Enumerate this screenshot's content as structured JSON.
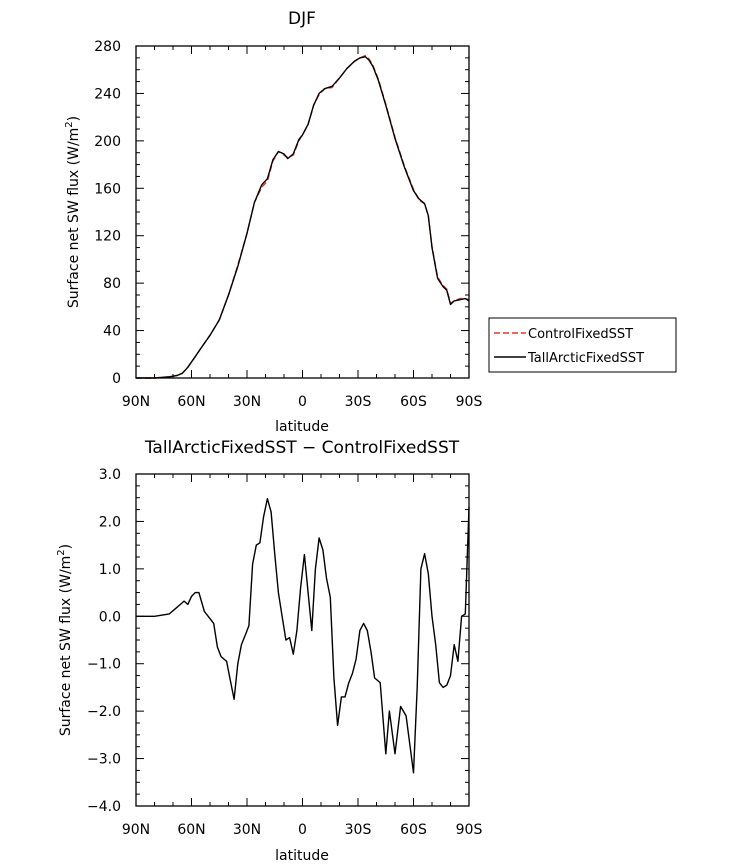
{
  "chart_data": [
    {
      "type": "line",
      "title": "DJF",
      "xlabel": "latitude",
      "ylabel": "Surface net SW flux (W/m",
      "ylabel_sup": "2",
      "ylabel_close": ")",
      "xlim": [
        90,
        -90
      ],
      "ylim": [
        0,
        280
      ],
      "xticks": [
        90,
        60,
        30,
        0,
        -30,
        -60,
        -90
      ],
      "xtick_labels": [
        "90N",
        "60N",
        "30N",
        "0",
        "30S",
        "60S",
        "90S"
      ],
      "yticks": [
        0,
        40,
        80,
        120,
        160,
        200,
        240,
        280
      ],
      "ytick_labels": [
        "0",
        "40",
        "80",
        "120",
        "160",
        "200",
        "240",
        "280"
      ],
      "legend_position": "right",
      "series": [
        {
          "name": "ControlFixedSST",
          "color": "#e8332a",
          "dash": "dashed",
          "x": [
            90,
            80,
            72,
            68,
            65,
            62,
            58,
            55,
            50,
            45,
            40,
            35,
            30,
            26,
            22,
            19,
            16,
            13,
            10,
            8,
            5,
            2,
            0,
            -3,
            -6,
            -9,
            -12,
            -16,
            -20,
            -24,
            -28,
            -31,
            -34,
            -36,
            -38,
            -41,
            -45,
            -50,
            -55,
            -60,
            -63,
            -66,
            -68,
            -70,
            -73,
            -76,
            -78,
            -80,
            -82,
            -85,
            -88,
            -90
          ],
          "y": [
            0,
            0,
            1,
            2,
            4,
            9,
            18,
            25,
            36,
            49,
            70,
            95,
            122,
            148,
            161,
            166,
            183,
            191,
            188,
            186,
            188,
            200,
            205,
            214,
            230,
            239,
            244,
            245,
            253,
            261,
            267,
            270,
            272,
            269,
            264,
            252,
            231,
            203,
            179,
            159,
            150,
            147,
            137,
            111,
            85,
            78,
            75,
            63,
            65,
            67,
            67,
            66
          ]
        },
        {
          "name": "TallArcticFixedSST",
          "color": "#000000",
          "dash": "solid",
          "x": [
            90,
            80,
            72,
            68,
            65,
            62,
            58,
            55,
            50,
            45,
            40,
            35,
            30,
            26,
            22,
            19,
            16,
            13,
            10,
            8,
            5,
            2,
            0,
            -3,
            -6,
            -9,
            -12,
            -16,
            -20,
            -24,
            -28,
            -31,
            -34,
            -36,
            -38,
            -41,
            -45,
            -50,
            -55,
            -60,
            -63,
            -66,
            -68,
            -70,
            -73,
            -76,
            -78,
            -80,
            -82,
            -85,
            -88,
            -90
          ],
          "y": [
            0,
            0,
            1,
            2,
            4,
            9,
            18,
            25,
            36,
            49,
            70,
            94,
            122,
            148,
            163,
            168,
            184,
            191,
            189,
            185,
            189,
            201,
            205,
            214,
            230,
            240,
            244,
            246,
            253,
            261,
            267,
            270,
            271,
            268,
            263,
            251,
            230,
            202,
            178,
            158,
            151,
            147,
            137,
            110,
            84,
            77,
            74,
            62,
            65,
            66,
            67,
            65
          ]
        }
      ]
    },
    {
      "type": "line",
      "title": "TallArcticFixedSST − ControlFixedSST",
      "xlabel": "latitude",
      "ylabel": "Surface net SW flux (W/m",
      "ylabel_sup": "2",
      "ylabel_close": ")",
      "xlim": [
        90,
        -90
      ],
      "ylim": [
        -4,
        3
      ],
      "xticks": [
        90,
        60,
        30,
        0,
        -30,
        -60,
        -90
      ],
      "xtick_labels": [
        "90N",
        "60N",
        "30N",
        "0",
        "30S",
        "60S",
        "90S"
      ],
      "yticks": [
        -4,
        -3,
        -2,
        -1,
        0,
        1,
        2,
        3
      ],
      "ytick_labels": [
        "−4.0",
        "−3.0",
        "−2.0",
        "−1.0",
        "0.0",
        "1.0",
        "2.0",
        "3.0"
      ],
      "series": [
        {
          "color": "#000000",
          "x": [
            90,
            80,
            72,
            69,
            66,
            64,
            62,
            60,
            58,
            56,
            53,
            51,
            48,
            46,
            44,
            41,
            39,
            37,
            35,
            33,
            31,
            29,
            27,
            25,
            23,
            21,
            19,
            17,
            15,
            13,
            11,
            9,
            7,
            5,
            3,
            1,
            -1,
            -3,
            -5,
            -7,
            -9,
            -11,
            -13,
            -15,
            -17,
            -19,
            -21,
            -23,
            -25,
            -27,
            -29,
            -31,
            -33,
            -35,
            -37,
            -39,
            -42,
            -45,
            -47,
            -50,
            -53,
            -56,
            -58,
            -60,
            -62,
            -64,
            -66,
            -68,
            -70,
            -72,
            -74,
            -76,
            -78,
            -80,
            -82,
            -84,
            -86,
            -88,
            -90
          ],
          "y": [
            0,
            0,
            0.05,
            0.15,
            0.25,
            0.32,
            0.25,
            0.42,
            0.5,
            0.5,
            0.1,
            0,
            -0.15,
            -0.65,
            -0.85,
            -0.95,
            -1.35,
            -1.75,
            -1.0,
            -0.6,
            -0.4,
            -0.2,
            1.1,
            1.5,
            1.55,
            2.1,
            2.48,
            2.2,
            1.3,
            0.5,
            0,
            -0.5,
            -0.45,
            -0.8,
            -0.3,
            0.6,
            1.3,
            0.5,
            -0.3,
            1.0,
            1.65,
            1.4,
            0.8,
            0.4,
            -1.3,
            -2.3,
            -1.7,
            -1.7,
            -1.4,
            -1.2,
            -0.9,
            -0.3,
            -0.15,
            -0.3,
            -0.75,
            -1.3,
            -1.4,
            -2.9,
            -2.0,
            -2.9,
            -1.9,
            -2.1,
            -2.7,
            -3.3,
            -1.5,
            1.0,
            1.32,
            0.9,
            0,
            -0.6,
            -1.4,
            -1.5,
            -1.45,
            -1.25,
            -0.6,
            -0.95,
            0,
            0.05,
            2.3
          ]
        }
      ]
    }
  ]
}
